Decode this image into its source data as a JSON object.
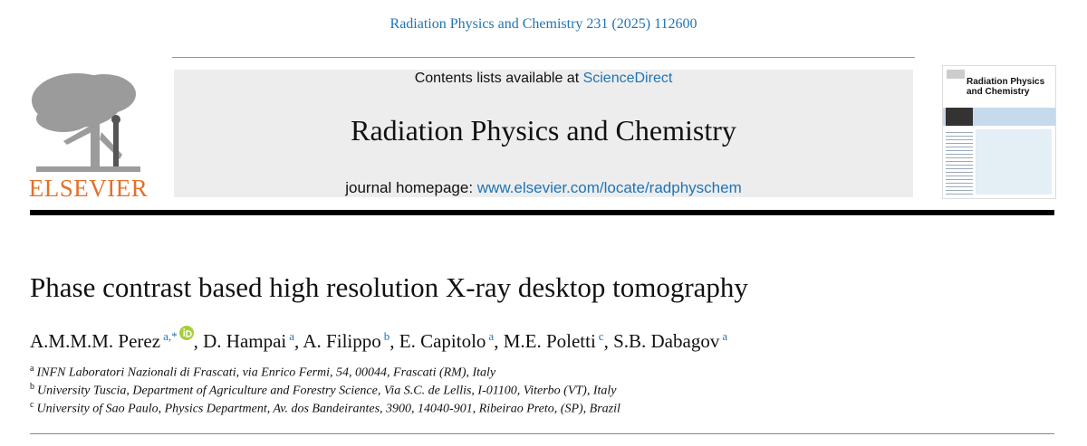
{
  "header": {
    "citation": "Radiation Physics and Chemistry 231 (2025) 112600",
    "contents_prefix": "Contents lists available at ",
    "contents_link": "ScienceDirect",
    "journal_title": "Radiation Physics and Chemistry",
    "homepage_prefix": "journal homepage: ",
    "homepage_link": "www.elsevier.com/locate/radphyschem",
    "publisher": "ELSEVIER",
    "cover_title": "Radiation Physics and Chemistry"
  },
  "article": {
    "title": "Phase contrast based high resolution X-ray desktop tomography",
    "author_separator": ", ",
    "authors": [
      {
        "name": "A.M.M.M. Perez",
        "affil": "a,*",
        "orcid": true
      },
      {
        "name": "D. Hampai",
        "affil": "a"
      },
      {
        "name": "A. Filippo",
        "affil": "b"
      },
      {
        "name": "E. Capitolo",
        "affil": "a"
      },
      {
        "name": "M.E. Poletti",
        "affil": "c"
      },
      {
        "name": "S.B. Dabagov",
        "affil": "a"
      }
    ],
    "affiliations": [
      {
        "label": "a",
        "text": "INFN Laboratori Nazionali di Frascati, via Enrico Fermi, 54, 00044, Frascati (RM), Italy"
      },
      {
        "label": "b",
        "text": "University Tuscia, Department of Agriculture and Forestry Science, Via S.C. de Lellis, I-01100, Viterbo (VT), Italy"
      },
      {
        "label": "c",
        "text": "University of Sao Paulo, Physics Department, Av. dos Bandeirantes, 3900, 14040-901, Ribeirao Preto, (SP), Brazil"
      }
    ]
  }
}
